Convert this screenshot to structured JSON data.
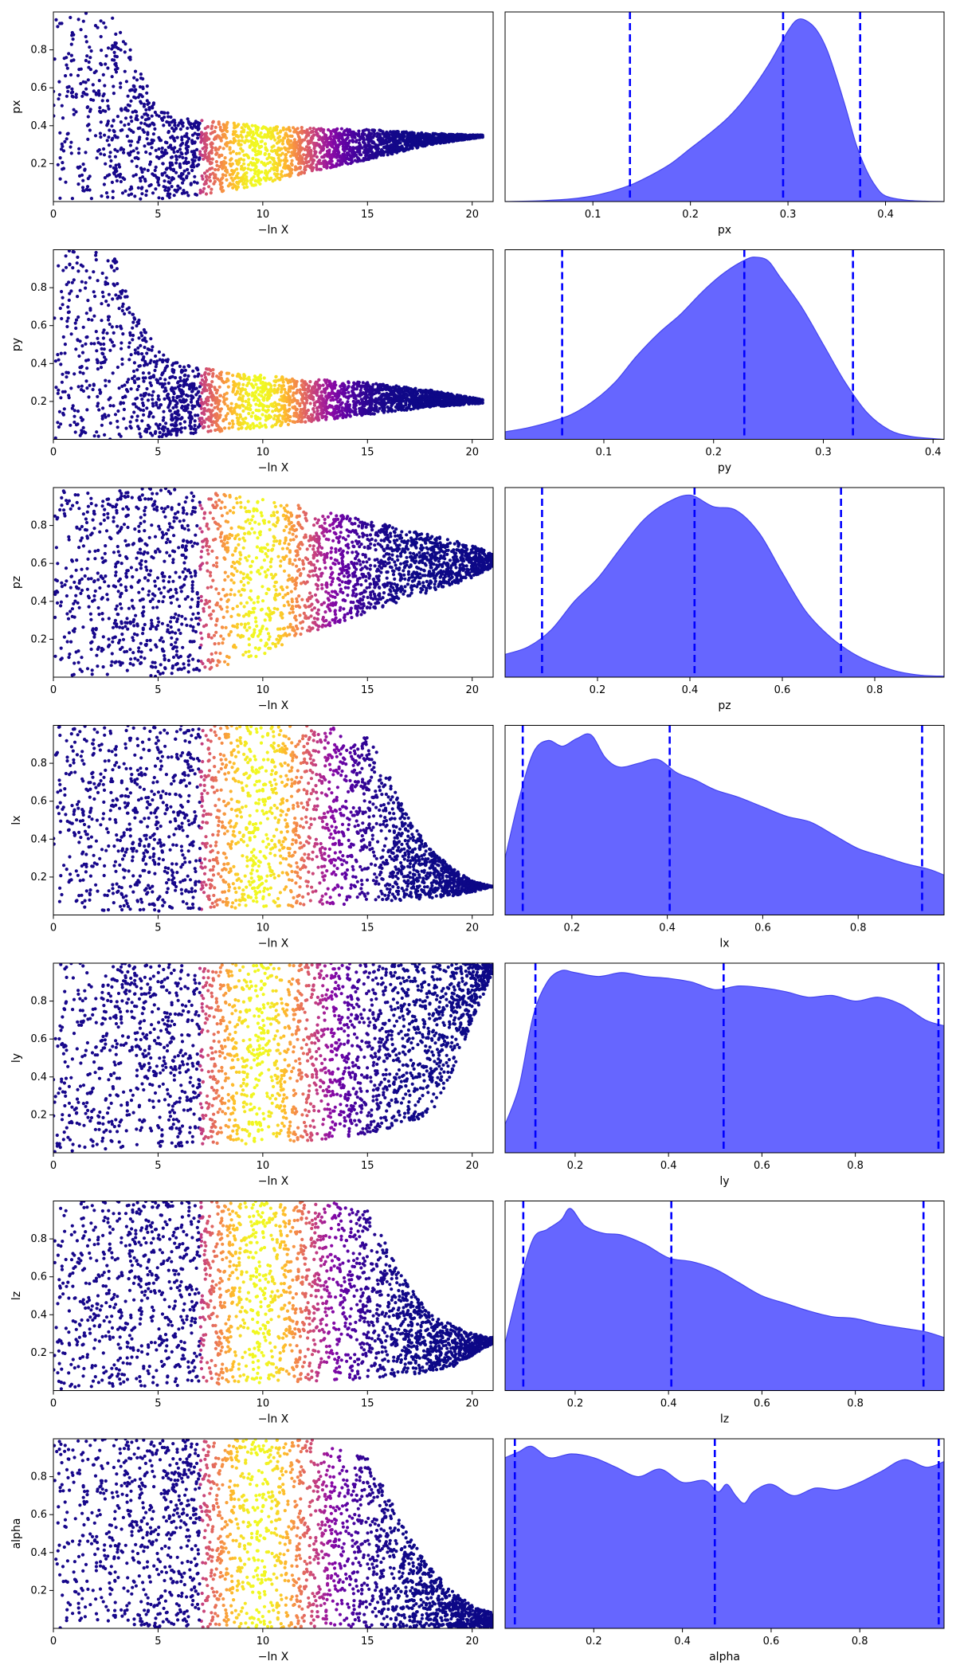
{
  "figure": {
    "colors": {
      "scatter_low": "#1a0c7a",
      "kde_fill": "#6666ff",
      "kde_edge": "#4444ee",
      "quantile_line": "#0000ff",
      "colormap": "plasma"
    }
  },
  "chart_data": [
    {
      "type": "scatter",
      "name": "px-trace",
      "xlabel": "−ln X",
      "ylabel": "px",
      "xlim": [
        0,
        21
      ],
      "ylim": [
        0,
        1
      ],
      "xticks": [
        0,
        5,
        10,
        15,
        20
      ],
      "yticks": [
        0.2,
        0.4,
        0.6,
        0.8
      ],
      "envelope": {
        "x": [
          0,
          2,
          3,
          4,
          5,
          6,
          8,
          10,
          12,
          15,
          18,
          20.5
        ],
        "low": [
          0,
          0,
          0,
          0,
          0.01,
          0.02,
          0.05,
          0.09,
          0.15,
          0.22,
          0.3,
          0.34
        ],
        "high": [
          1,
          1,
          0.97,
          0.72,
          0.5,
          0.44,
          0.42,
          0.4,
          0.39,
          0.38,
          0.36,
          0.35
        ]
      },
      "color_peak_x": 9.8
    },
    {
      "type": "area",
      "name": "px-posterior",
      "xlabel": "px",
      "xlim": [
        0.01,
        0.46
      ],
      "xticks": [
        0.1,
        0.2,
        0.3,
        0.4
      ],
      "x": [
        0.01,
        0.05,
        0.08,
        0.1,
        0.12,
        0.14,
        0.16,
        0.18,
        0.2,
        0.22,
        0.24,
        0.26,
        0.28,
        0.3,
        0.31,
        0.32,
        0.33,
        0.34,
        0.35,
        0.36,
        0.37,
        0.38,
        0.39,
        0.4,
        0.42,
        0.44,
        0.46
      ],
      "y": [
        0,
        0.005,
        0.015,
        0.03,
        0.055,
        0.09,
        0.14,
        0.2,
        0.28,
        0.36,
        0.45,
        0.57,
        0.72,
        0.9,
        0.96,
        0.95,
        0.9,
        0.8,
        0.65,
        0.48,
        0.3,
        0.17,
        0.08,
        0.03,
        0.008,
        0.002,
        0
      ],
      "quantiles": [
        0.138,
        0.295,
        0.374
      ]
    },
    {
      "type": "scatter",
      "name": "py-trace",
      "xlabel": "−ln X",
      "ylabel": "py",
      "xlim": [
        0,
        21
      ],
      "ylim": [
        0,
        1
      ],
      "xticks": [
        0,
        5,
        10,
        15,
        20
      ],
      "yticks": [
        0.2,
        0.4,
        0.6,
        0.8
      ],
      "envelope": {
        "x": [
          0,
          2,
          3,
          4,
          5,
          6,
          8,
          10,
          12,
          15,
          18,
          20.5
        ],
        "low": [
          0,
          0,
          0,
          0,
          0.01,
          0.02,
          0.04,
          0.06,
          0.09,
          0.13,
          0.17,
          0.19
        ],
        "high": [
          1,
          1,
          0.95,
          0.65,
          0.47,
          0.4,
          0.36,
          0.34,
          0.32,
          0.3,
          0.26,
          0.21
        ]
      },
      "color_peak_x": 9.8
    },
    {
      "type": "area",
      "name": "py-posterior",
      "xlabel": "py",
      "xlim": [
        0.01,
        0.41
      ],
      "xticks": [
        0.1,
        0.2,
        0.3,
        0.4
      ],
      "x": [
        0.01,
        0.03,
        0.05,
        0.07,
        0.09,
        0.11,
        0.13,
        0.15,
        0.17,
        0.19,
        0.21,
        0.23,
        0.24,
        0.25,
        0.26,
        0.28,
        0.3,
        0.32,
        0.34,
        0.36,
        0.38,
        0.41
      ],
      "y": [
        0.04,
        0.06,
        0.09,
        0.13,
        0.2,
        0.3,
        0.44,
        0.56,
        0.66,
        0.78,
        0.88,
        0.95,
        0.96,
        0.94,
        0.86,
        0.7,
        0.5,
        0.3,
        0.14,
        0.05,
        0.015,
        0
      ],
      "quantiles": [
        0.062,
        0.228,
        0.327
      ]
    },
    {
      "type": "scatter",
      "name": "pz-trace",
      "xlabel": "−ln X",
      "ylabel": "pz",
      "xlim": [
        0,
        21
      ],
      "ylim": [
        0,
        1
      ],
      "xticks": [
        0,
        5,
        10,
        15,
        20
      ],
      "yticks": [
        0.2,
        0.4,
        0.6,
        0.8
      ],
      "envelope": {
        "x": [
          0,
          5,
          7,
          9,
          10,
          12,
          14,
          16,
          18,
          20,
          21
        ],
        "low": [
          0,
          0,
          0.02,
          0.08,
          0.12,
          0.22,
          0.3,
          0.38,
          0.45,
          0.52,
          0.58
        ],
        "high": [
          1,
          1,
          0.98,
          0.96,
          0.94,
          0.9,
          0.85,
          0.8,
          0.75,
          0.7,
          0.65
        ]
      },
      "color_peak_x": 9.8
    },
    {
      "type": "area",
      "name": "pz-posterior",
      "xlabel": "pz",
      "xlim": [
        0.0,
        0.95
      ],
      "xticks": [
        0.2,
        0.4,
        0.6,
        0.8
      ],
      "x": [
        0.0,
        0.05,
        0.1,
        0.15,
        0.2,
        0.25,
        0.3,
        0.35,
        0.4,
        0.45,
        0.5,
        0.55,
        0.6,
        0.65,
        0.7,
        0.75,
        0.8,
        0.85,
        0.9,
        0.95
      ],
      "y": [
        0.12,
        0.16,
        0.25,
        0.4,
        0.52,
        0.68,
        0.83,
        0.92,
        0.96,
        0.9,
        0.88,
        0.76,
        0.55,
        0.35,
        0.22,
        0.13,
        0.07,
        0.03,
        0.01,
        0.005
      ],
      "quantiles": [
        0.08,
        0.41,
        0.727
      ]
    },
    {
      "type": "scatter",
      "name": "lx-trace",
      "xlabel": "−ln X",
      "ylabel": "lx",
      "xlim": [
        0,
        21
      ],
      "ylim": [
        0,
        1
      ],
      "xticks": [
        0,
        5,
        10,
        15,
        20
      ],
      "yticks": [
        0.2,
        0.4,
        0.6,
        0.8
      ],
      "envelope": {
        "x": [
          0,
          5,
          10,
          13,
          15,
          16,
          17,
          18,
          19,
          20,
          21
        ],
        "low": [
          0,
          0.02,
          0.04,
          0.05,
          0.06,
          0.07,
          0.08,
          0.09,
          0.1,
          0.12,
          0.15
        ],
        "high": [
          1,
          1,
          1,
          1,
          0.95,
          0.75,
          0.5,
          0.35,
          0.25,
          0.18,
          0.15
        ]
      },
      "color_peak_x": 9.8
    },
    {
      "type": "area",
      "name": "lx-posterior",
      "xlabel": "lx",
      "xlim": [
        0.06,
        0.98
      ],
      "xticks": [
        0.2,
        0.4,
        0.6,
        0.8
      ],
      "x": [
        0.06,
        0.09,
        0.12,
        0.15,
        0.18,
        0.21,
        0.24,
        0.27,
        0.3,
        0.34,
        0.38,
        0.42,
        0.46,
        0.5,
        0.55,
        0.6,
        0.65,
        0.7,
        0.75,
        0.8,
        0.85,
        0.9,
        0.95,
        0.98
      ],
      "y": [
        0.3,
        0.62,
        0.86,
        0.92,
        0.89,
        0.93,
        0.95,
        0.83,
        0.78,
        0.8,
        0.82,
        0.75,
        0.71,
        0.66,
        0.62,
        0.57,
        0.52,
        0.49,
        0.42,
        0.35,
        0.31,
        0.27,
        0.24,
        0.21
      ],
      "quantiles": [
        0.097,
        0.405,
        0.934
      ]
    },
    {
      "type": "scatter",
      "name": "ly-trace",
      "xlabel": "−ln X",
      "ylabel": "ly",
      "xlim": [
        0,
        21
      ],
      "ylim": [
        0,
        1
      ],
      "xticks": [
        0,
        5,
        10,
        15,
        20
      ],
      "yticks": [
        0.2,
        0.4,
        0.6,
        0.8
      ],
      "envelope": {
        "x": [
          0,
          5,
          10,
          13,
          15,
          16,
          17,
          18,
          19,
          20,
          21
        ],
        "low": [
          0,
          0.03,
          0.05,
          0.07,
          0.1,
          0.12,
          0.15,
          0.2,
          0.4,
          0.7,
          0.95
        ],
        "high": [
          1,
          1,
          1,
          1,
          1,
          1,
          1,
          1,
          1,
          1,
          1
        ]
      },
      "color_peak_x": 9.8
    },
    {
      "type": "area",
      "name": "ly-posterior",
      "xlabel": "ly",
      "xlim": [
        0.05,
        0.99
      ],
      "xticks": [
        0.2,
        0.4,
        0.6,
        0.8
      ],
      "x": [
        0.05,
        0.08,
        0.11,
        0.14,
        0.17,
        0.2,
        0.25,
        0.3,
        0.35,
        0.4,
        0.45,
        0.5,
        0.55,
        0.6,
        0.65,
        0.7,
        0.75,
        0.8,
        0.85,
        0.9,
        0.95,
        0.99
      ],
      "y": [
        0.15,
        0.35,
        0.72,
        0.9,
        0.96,
        0.95,
        0.93,
        0.95,
        0.93,
        0.92,
        0.9,
        0.86,
        0.88,
        0.87,
        0.85,
        0.82,
        0.83,
        0.8,
        0.82,
        0.78,
        0.7,
        0.67
      ],
      "quantiles": [
        0.115,
        0.518,
        0.978
      ]
    },
    {
      "type": "scatter",
      "name": "lz-trace",
      "xlabel": "−ln X",
      "ylabel": "lz",
      "xlim": [
        0,
        21
      ],
      "ylim": [
        0,
        1
      ],
      "xticks": [
        0,
        5,
        10,
        15,
        20
      ],
      "yticks": [
        0.2,
        0.4,
        0.6,
        0.8
      ],
      "envelope": {
        "x": [
          0,
          5,
          10,
          13,
          15,
          16,
          17,
          18,
          19,
          20,
          21
        ],
        "low": [
          0,
          0.02,
          0.04,
          0.05,
          0.06,
          0.07,
          0.08,
          0.1,
          0.12,
          0.18,
          0.25
        ],
        "high": [
          1,
          1,
          1,
          1,
          0.95,
          0.75,
          0.55,
          0.4,
          0.35,
          0.3,
          0.28
        ]
      },
      "color_peak_x": 9.8
    },
    {
      "type": "area",
      "name": "lz-posterior",
      "xlabel": "lz",
      "xlim": [
        0.05,
        0.99
      ],
      "xticks": [
        0.2,
        0.4,
        0.6,
        0.8
      ],
      "x": [
        0.05,
        0.08,
        0.11,
        0.14,
        0.17,
        0.19,
        0.22,
        0.26,
        0.3,
        0.35,
        0.4,
        0.45,
        0.5,
        0.55,
        0.6,
        0.65,
        0.7,
        0.75,
        0.8,
        0.85,
        0.9,
        0.95,
        0.99
      ],
      "y": [
        0.25,
        0.55,
        0.8,
        0.85,
        0.9,
        0.96,
        0.87,
        0.83,
        0.82,
        0.77,
        0.7,
        0.68,
        0.64,
        0.57,
        0.5,
        0.46,
        0.42,
        0.39,
        0.38,
        0.35,
        0.33,
        0.31,
        0.28
      ],
      "quantiles": [
        0.089,
        0.406,
        0.946
      ]
    },
    {
      "type": "scatter",
      "name": "alpha-trace",
      "xlabel": "−ln X",
      "ylabel": "alpha",
      "xlim": [
        0,
        21
      ],
      "ylim": [
        0,
        1
      ],
      "xticks": [
        0,
        5,
        10,
        15,
        20
      ],
      "yticks": [
        0.2,
        0.4,
        0.6,
        0.8
      ],
      "envelope": {
        "x": [
          0,
          5,
          10,
          13,
          15,
          16,
          17,
          18,
          19,
          20,
          21
        ],
        "low": [
          0,
          0,
          0,
          0,
          0,
          0,
          0,
          0,
          0,
          0,
          0
        ],
        "high": [
          1,
          1,
          1,
          1,
          0.9,
          0.7,
          0.48,
          0.32,
          0.2,
          0.12,
          0.08
        ]
      },
      "color_peak_x": 9.8
    },
    {
      "type": "area",
      "name": "alpha-posterior",
      "xlabel": "alpha",
      "xlim": [
        0.0,
        0.99
      ],
      "xticks": [
        0.2,
        0.4,
        0.6,
        0.8
      ],
      "x": [
        0.0,
        0.03,
        0.06,
        0.1,
        0.15,
        0.2,
        0.25,
        0.3,
        0.35,
        0.4,
        0.45,
        0.48,
        0.5,
        0.52,
        0.54,
        0.56,
        0.6,
        0.65,
        0.7,
        0.75,
        0.8,
        0.85,
        0.9,
        0.95,
        0.99
      ],
      "y": [
        0.9,
        0.93,
        0.96,
        0.9,
        0.92,
        0.9,
        0.85,
        0.8,
        0.84,
        0.77,
        0.78,
        0.72,
        0.76,
        0.7,
        0.66,
        0.72,
        0.76,
        0.7,
        0.74,
        0.73,
        0.77,
        0.83,
        0.89,
        0.85,
        0.88
      ],
      "quantiles": [
        0.022,
        0.473,
        0.978
      ]
    }
  ]
}
